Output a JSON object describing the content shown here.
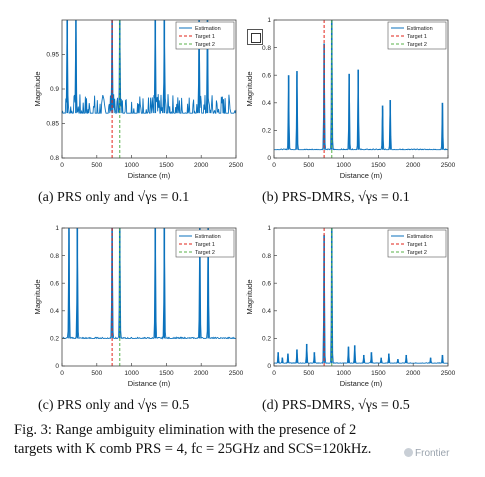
{
  "figure": {
    "captions": [
      "(a) PRS only and √γs = 0.1",
      "(b) PRS-DMRS, √γs = 0.1",
      "(c) PRS only and √γs = 0.5",
      "(d) PRS-DMRS, √γs = 0.5"
    ],
    "caption_line1": "Fig. 3: Range ambiguity elimination with the presence of 2",
    "caption_line2": "targets with K comb PRS = 4, fc = 25GHz and SCS=120kHz.",
    "watermark": "Frontier"
  },
  "colors": {
    "estimation": "#0b72bd",
    "target1": "#e2231a",
    "target2": "#58b24a"
  },
  "chart_data": [
    {
      "type": "line",
      "xlabel": "Distance (m)",
      "ylabel": "Magnitude",
      "xlim": [
        0,
        2500
      ],
      "ylim": [
        0.8,
        1.0
      ],
      "xticks": [
        0,
        500,
        1000,
        1500,
        2000,
        2500
      ],
      "yticks": [
        0.8,
        0.85,
        0.9,
        0.95
      ],
      "legend": [
        "Estimation",
        "Target 1",
        "Target 2"
      ],
      "legend_position": "top-right",
      "targets": {
        "target1": 720,
        "target2": 830
      },
      "baseline": 0.865,
      "noise": 0.028,
      "peaks": [
        [
          75,
          1.0
        ],
        [
          200,
          1.0
        ],
        [
          720,
          1.0
        ],
        [
          830,
          1.0
        ],
        [
          1340,
          1.0
        ],
        [
          1470,
          1.0
        ],
        [
          1970,
          1.0
        ],
        [
          2090,
          1.0
        ]
      ]
    },
    {
      "type": "line",
      "xlabel": "Distance (m)",
      "ylabel": "Magnitude",
      "xlim": [
        0,
        2500
      ],
      "ylim": [
        0,
        1.0
      ],
      "xticks": [
        0,
        500,
        1000,
        1500,
        2000,
        2500
      ],
      "yticks": [
        0,
        0.2,
        0.4,
        0.6,
        0.8,
        1
      ],
      "legend": [
        "Estimation",
        "Target 1",
        "Target 2"
      ],
      "legend_position": "top-right",
      "targets": {
        "target1": 720,
        "target2": 830
      },
      "baseline": 0.06,
      "noise": 0.006,
      "peaks": [
        [
          210,
          0.6
        ],
        [
          330,
          0.63
        ],
        [
          720,
          0.83
        ],
        [
          830,
          1.0
        ],
        [
          1080,
          0.61
        ],
        [
          1210,
          0.64
        ],
        [
          1560,
          0.38
        ],
        [
          1670,
          0.42
        ],
        [
          2420,
          0.4
        ]
      ]
    },
    {
      "type": "line",
      "xlabel": "Distance (m)",
      "ylabel": "Magnitude",
      "xlim": [
        0,
        2500
      ],
      "ylim": [
        0,
        1.0
      ],
      "xticks": [
        0,
        500,
        1000,
        1500,
        2000,
        2500
      ],
      "yticks": [
        0,
        0.2,
        0.4,
        0.6,
        0.8,
        1
      ],
      "legend": [
        "Estimation",
        "Target 1",
        "Target 2"
      ],
      "legend_position": "top-right",
      "targets": {
        "target1": 720,
        "target2": 830
      },
      "baseline": 0.2,
      "noise": 0.008,
      "peaks": [
        [
          100,
          1.0
        ],
        [
          220,
          1.0
        ],
        [
          720,
          1.0
        ],
        [
          830,
          1.0
        ],
        [
          1340,
          1.0
        ],
        [
          1470,
          1.0
        ],
        [
          1980,
          1.0
        ],
        [
          2100,
          1.0
        ]
      ]
    },
    {
      "type": "line",
      "xlabel": "Distance (m)",
      "ylabel": "Magnitude",
      "xlim": [
        0,
        2500
      ],
      "ylim": [
        0,
        1.0
      ],
      "xticks": [
        0,
        500,
        1000,
        1500,
        2000,
        2500
      ],
      "yticks": [
        0,
        0.2,
        0.4,
        0.6,
        0.8,
        1
      ],
      "legend": [
        "Estimation",
        "Target 1",
        "Target 2"
      ],
      "legend_position": "top-right",
      "targets": {
        "target1": 720,
        "target2": 830
      },
      "baseline": 0.02,
      "noise": 0.004,
      "peaks": [
        [
          60,
          0.1
        ],
        [
          120,
          0.06
        ],
        [
          200,
          0.09
        ],
        [
          330,
          0.12
        ],
        [
          470,
          0.16
        ],
        [
          580,
          0.1
        ],
        [
          720,
          0.95
        ],
        [
          830,
          1.0
        ],
        [
          1070,
          0.14
        ],
        [
          1160,
          0.15
        ],
        [
          1290,
          0.08
        ],
        [
          1400,
          0.1
        ],
        [
          1540,
          0.06
        ],
        [
          1650,
          0.09
        ],
        [
          1780,
          0.05
        ],
        [
          1900,
          0.08
        ],
        [
          2250,
          0.06
        ],
        [
          2420,
          0.08
        ]
      ]
    }
  ]
}
